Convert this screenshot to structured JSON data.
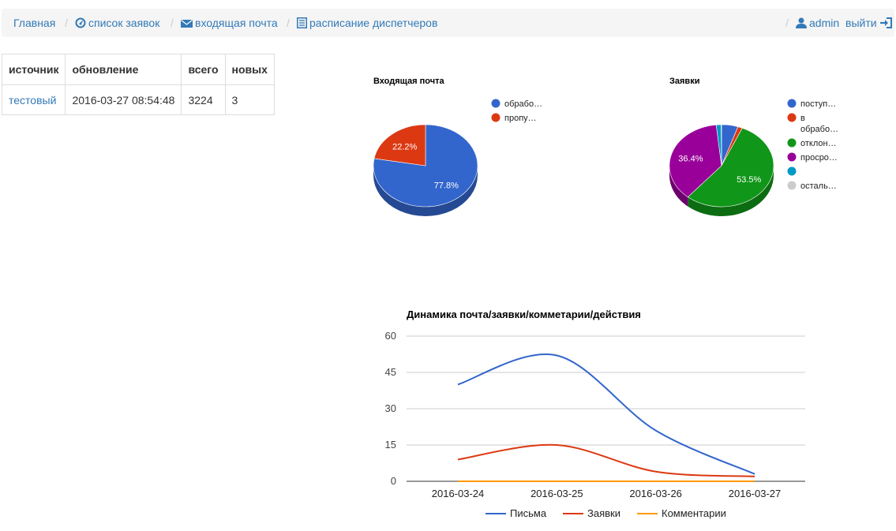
{
  "nav": {
    "home": "Главная",
    "requests": "список заявок",
    "inbox": "входящая почта",
    "schedule": "расписание диспетчеров",
    "user": "admin",
    "logout": "выйти",
    "separator": "/"
  },
  "table": {
    "headers": [
      "источник",
      "обновление",
      "всего",
      "новых"
    ],
    "rows": [
      {
        "source": "тестовый",
        "updated": "2016-03-27 08:54:48",
        "total": "3224",
        "new": "3"
      }
    ]
  },
  "chart_data": [
    {
      "type": "pie",
      "title": "Входящая почта",
      "slices": [
        {
          "label": "обрабо…",
          "value": 77.8,
          "label_text": "77.8%",
          "color": "#3366cc"
        },
        {
          "label": "пропу…",
          "value": 22.2,
          "label_text": "22.2%",
          "color": "#dc3912"
        }
      ]
    },
    {
      "type": "pie",
      "title": "Заявки",
      "slices": [
        {
          "label": "поступ…",
          "value": 5.0,
          "label_text": "",
          "color": "#3366cc"
        },
        {
          "label": "в обрабо…",
          "value": 1.4,
          "label_text": "",
          "color": "#dc3912"
        },
        {
          "label": "отклон…",
          "value": 53.5,
          "label_text": "53.5%",
          "color": "#109618"
        },
        {
          "label": "просро…",
          "value": 36.4,
          "label_text": "36.4%",
          "color": "#990099"
        },
        {
          "label": "",
          "value": 1.5,
          "label_text": "",
          "color": "#0099c6"
        },
        {
          "label": "осталь…",
          "value": 0.1,
          "label_text": "",
          "color": "#cccccc"
        }
      ]
    },
    {
      "type": "line",
      "title": "Динамика почта/заявки/комметарии/действия",
      "categories": [
        "2016-03-24",
        "2016-03-25",
        "2016-03-26",
        "2016-03-27"
      ],
      "ylim": [
        0,
        60
      ],
      "yticks": [
        0,
        15,
        30,
        45,
        60
      ],
      "grid": true,
      "legend_position": "bottom",
      "series": [
        {
          "name": "Письма",
          "values": [
            40,
            52,
            21,
            3
          ],
          "color": "#3366cc"
        },
        {
          "name": "Заявки",
          "values": [
            9,
            15,
            4,
            2
          ],
          "color": "#dc3912"
        },
        {
          "name": "Комментарии",
          "values": [
            0,
            0,
            0,
            0
          ],
          "color": "#ff9900"
        }
      ]
    }
  ]
}
